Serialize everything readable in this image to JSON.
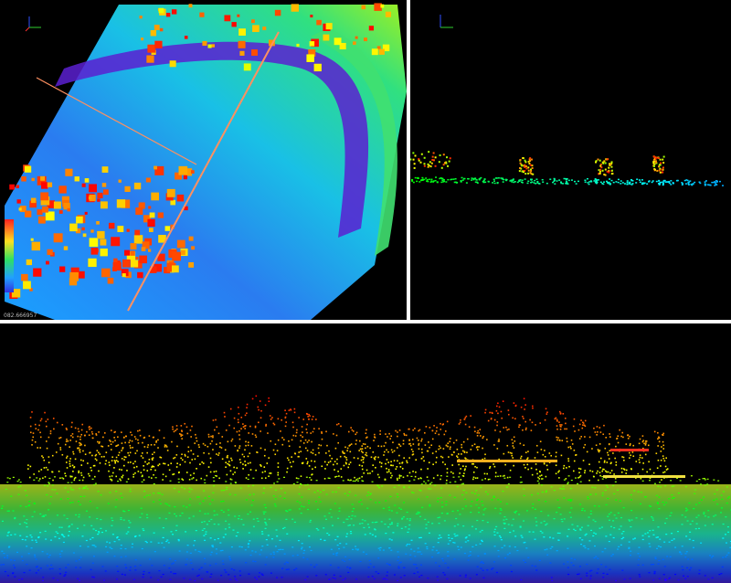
{
  "views": {
    "plan_view": {
      "scale_label": "082.666957"
    }
  }
}
